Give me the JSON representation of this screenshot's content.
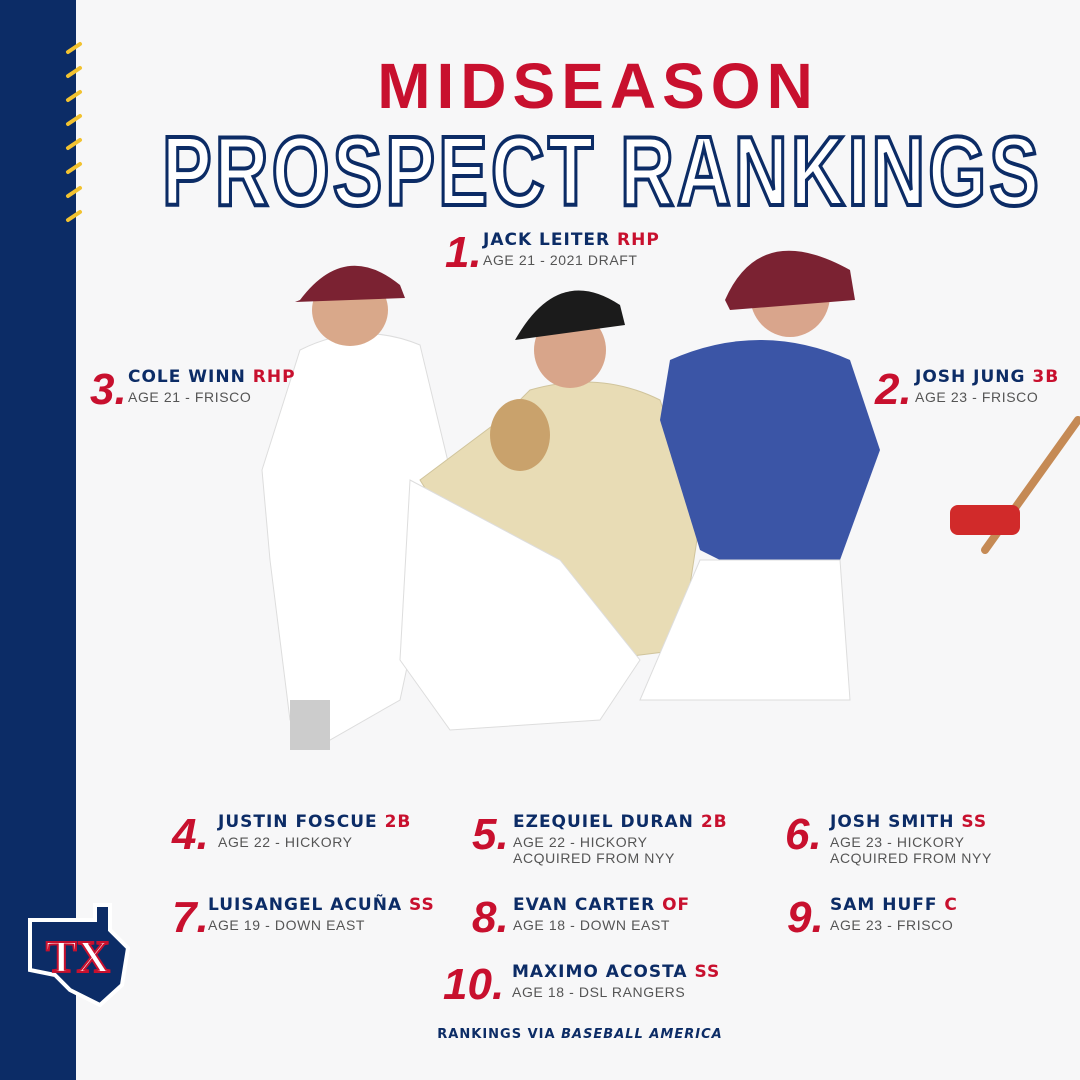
{
  "header": {
    "title_top": "MIDSEASON",
    "title_bottom": "PROSPECT RANKINGS"
  },
  "prospects": [
    {
      "rank": "1.",
      "name": "JACK LEITER",
      "position": "RHP",
      "details": [
        "AGE 21 - 2021 DRAFT"
      ]
    },
    {
      "rank": "2.",
      "name": "JOSH JUNG",
      "position": "3B",
      "details": [
        "AGE 23 - FRISCO"
      ]
    },
    {
      "rank": "3.",
      "name": "COLE WINN",
      "position": "RHP",
      "details": [
        "AGE 21 - FRISCO"
      ]
    },
    {
      "rank": "4.",
      "name": "JUSTIN FOSCUE",
      "position": "2B",
      "details": [
        "AGE 22 - HICKORY"
      ]
    },
    {
      "rank": "5.",
      "name": "EZEQUIEL DURAN",
      "position": "2B",
      "details": [
        "AGE 22 - HICKORY",
        "ACQUIRED FROM NYY"
      ]
    },
    {
      "rank": "6.",
      "name": "JOSH SMITH",
      "position": "SS",
      "details": [
        "AGE 23 - HICKORY",
        "ACQUIRED FROM NYY"
      ]
    },
    {
      "rank": "7.",
      "name": "LUISANGEL ACUÑA",
      "position": "SS",
      "details": [
        "AGE 19 - DOWN EAST"
      ]
    },
    {
      "rank": "8.",
      "name": "EVAN CARTER",
      "position": "OF",
      "details": [
        "AGE 18 - DOWN EAST"
      ]
    },
    {
      "rank": "9.",
      "name": "SAM HUFF",
      "position": "C",
      "details": [
        "AGE 23 - FRISCO"
      ]
    },
    {
      "rank": "10.",
      "name": "MAXIMO ACOSTA",
      "position": "SS",
      "details": [
        "AGE 18 - DSL RANGERS"
      ]
    }
  ],
  "footer": {
    "prefix": "RANKINGS VIA",
    "source": "BASEBALL AMERICA"
  },
  "logo": {
    "text": "TX"
  }
}
